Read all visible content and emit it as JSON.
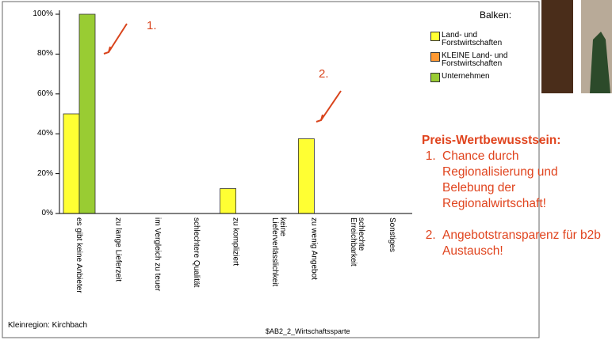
{
  "chart_data": {
    "type": "bar",
    "categories": [
      "es gibt keine Anbieter",
      "zu lange Lieferzeit",
      "im Vergleich zu teuer",
      "schlechtere Qualität",
      "zu kompliziert",
      "keine\nLieferverlässlichkeit",
      "zu wenig Angebot",
      "schlechte\nErreichbarkeit",
      "Sonstiges"
    ],
    "series": [
      {
        "name": "Land- und Forstwirtschaften",
        "color": "#ffff33",
        "values": [
          50,
          0,
          0,
          0,
          12.5,
          0,
          37.5,
          0,
          0
        ]
      },
      {
        "name": "KLEINE Land- und Forstwirtschaften",
        "color": "#ff9933",
        "values": [
          null,
          null,
          null,
          null,
          null,
          null,
          null,
          null,
          null
        ]
      },
      {
        "name": "Unternehmen",
        "color": "#99cc33",
        "values": [
          100,
          null,
          null,
          null,
          null,
          null,
          null,
          null,
          null
        ]
      }
    ],
    "ylim": [
      0,
      100
    ],
    "yticks": [
      {
        "value": 0,
        "label": "0%"
      },
      {
        "value": 20,
        "label": "20%"
      },
      {
        "value": 40,
        "label": "40%"
      },
      {
        "value": 60,
        "label": "60%"
      },
      {
        "value": 80,
        "label": "80%"
      },
      {
        "value": 100,
        "label": "100%"
      }
    ],
    "legend_title": "Balken:",
    "x_label": "$AB2_2_Wirtschaftssparte",
    "footnote": "Kleinregion: Kirchbach",
    "annotations": [
      "1.",
      "2."
    ]
  },
  "panel": {
    "title": "Preis-Wertbewusstsein:",
    "items": [
      "Chance durch Regionalisierung und Belebung der Regionalwirtschaft!",
      "Angebotstransparenz für b2b Austausch!"
    ]
  }
}
